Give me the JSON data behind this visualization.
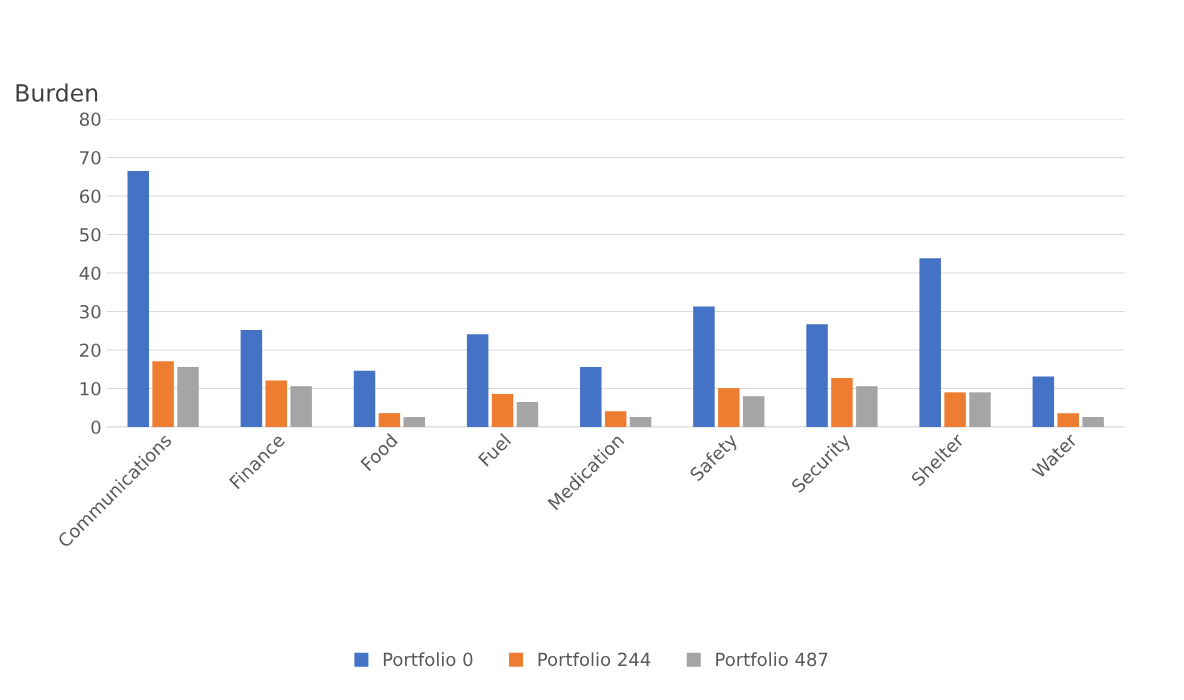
{
  "chart_data": {
    "type": "bar",
    "ylabel": "Burden",
    "categories": [
      "Communications",
      "Finance",
      "Food",
      "Fuel",
      "Medication",
      "Safety",
      "Security",
      "Shelter",
      "Water"
    ],
    "series": [
      {
        "name": "Portfolio 0",
        "color": "#4472c4",
        "values": [
          66.5,
          25.2,
          14.6,
          24.1,
          15.6,
          31.3,
          26.7,
          43.8,
          13.1
        ]
      },
      {
        "name": "Portfolio 244",
        "color": "#ed7d31",
        "values": [
          17.1,
          12.1,
          3.6,
          8.6,
          4.1,
          10.1,
          12.7,
          9.0,
          3.6
        ]
      },
      {
        "name": "Portfolio 487",
        "color": "#a5a5a5",
        "values": [
          15.6,
          10.6,
          2.6,
          6.5,
          2.6,
          8.0,
          10.6,
          9.0,
          2.6
        ]
      }
    ],
    "ylim": [
      0,
      80
    ],
    "yticks": [
      0,
      10,
      20,
      30,
      40,
      50,
      60,
      70,
      80
    ],
    "grid": "y",
    "legend": "bottom"
  }
}
